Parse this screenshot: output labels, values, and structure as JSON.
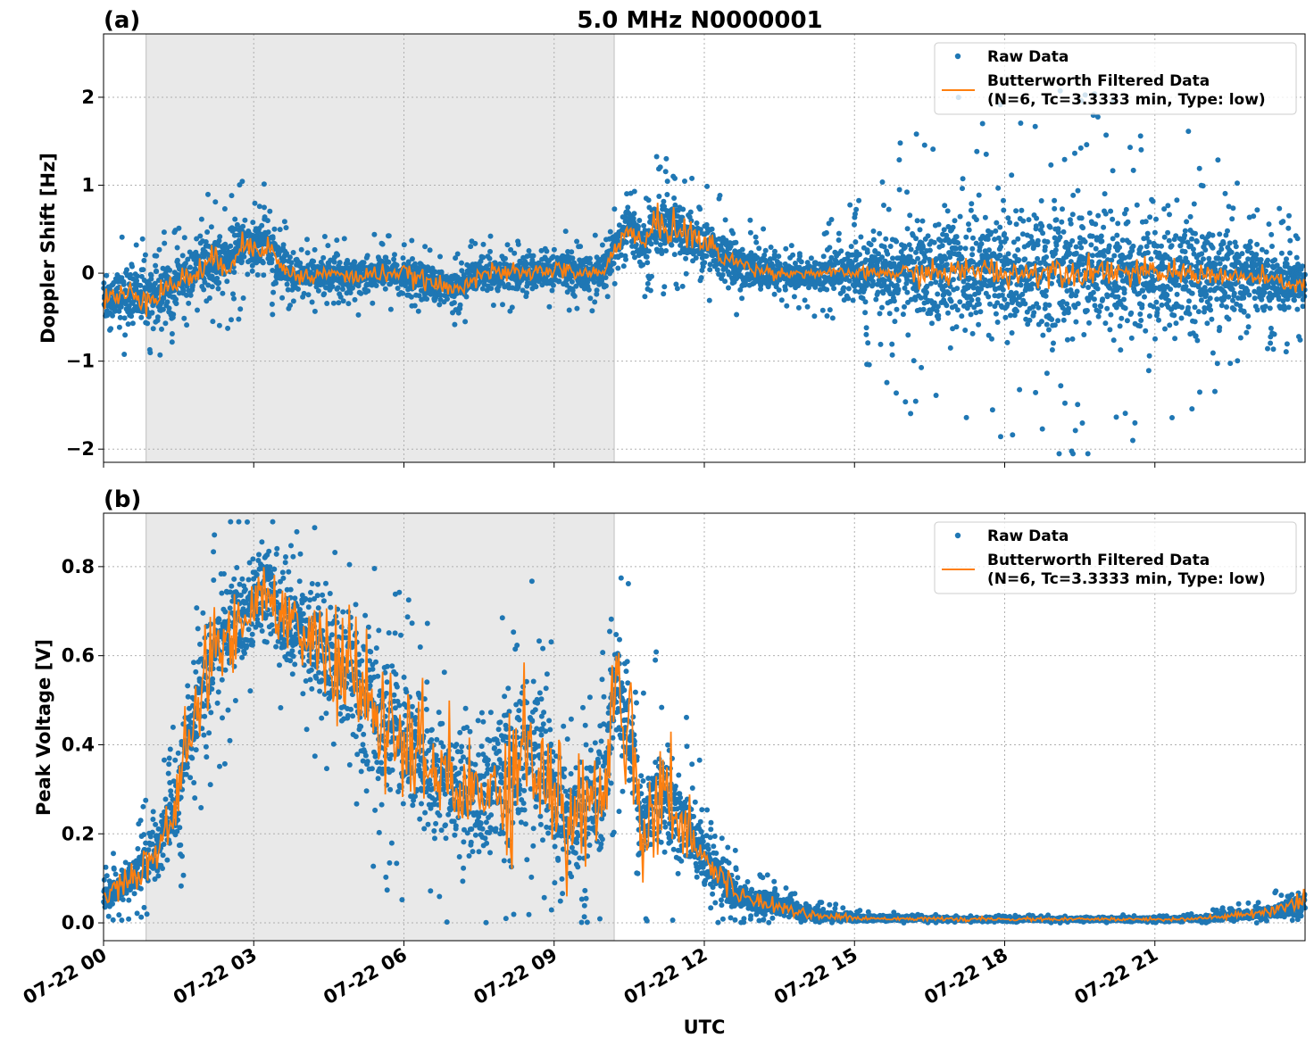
{
  "figure": {
    "suptitle": "5.0 MHz N0000001",
    "xlabel": "UTC"
  },
  "chart_data": [
    {
      "type": "scatter",
      "panel_label": "(a)",
      "ylabel": "Doppler Shift [Hz]",
      "x_range_hours": [
        0,
        24
      ],
      "ylim": [
        -2.15,
        2.72
      ],
      "yticks": [
        -2,
        -1,
        0,
        1,
        2
      ],
      "ytick_labels": [
        "−2",
        "−1",
        "0",
        "1",
        "2"
      ],
      "grid": true,
      "legend_position": "top-right",
      "shaded_interval_hours": [
        0.85,
        10.2
      ],
      "series": [
        {
          "name": "Raw Data",
          "kind": "markers",
          "color": "#1f77b4",
          "x_hours": [
            0,
            0.5,
            1,
            1.5,
            2,
            2.25,
            2.5,
            2.75,
            3,
            3.25,
            3.5,
            3.75,
            4,
            4.5,
            5,
            5.5,
            6,
            6.5,
            7,
            7.5,
            8,
            8.5,
            9,
            9.5,
            10,
            10.3,
            10.5,
            10.8,
            11,
            11.5,
            12,
            12.5,
            13,
            13.5,
            14,
            14.5,
            15,
            15.5,
            16,
            16.5,
            17,
            17.5,
            18,
            18.5,
            19,
            19.5,
            20,
            20.5,
            21,
            21.5,
            22,
            22.5,
            23,
            23.5,
            24
          ],
          "center": [
            -0.3,
            -0.25,
            -0.25,
            -0.1,
            0.05,
            0.15,
            0.1,
            0.3,
            0.3,
            0.35,
            0.1,
            0.0,
            -0.05,
            0.0,
            -0.05,
            0.0,
            0.0,
            -0.1,
            -0.2,
            0.0,
            0.0,
            0.0,
            0.05,
            0.0,
            0.0,
            0.4,
            0.5,
            0.3,
            0.55,
            0.5,
            0.35,
            0.15,
            0.05,
            0.0,
            0.0,
            0.0,
            0.0,
            0.0,
            0.0,
            0.0,
            0.0,
            0.05,
            0.0,
            0.0,
            0.05,
            0.0,
            0.05,
            0.0,
            0.0,
            0.0,
            0.0,
            -0.05,
            -0.05,
            -0.1,
            -0.15
          ],
          "spread": [
            0.3,
            0.3,
            0.35,
            0.3,
            0.35,
            0.4,
            0.35,
            0.35,
            0.35,
            0.35,
            0.3,
            0.25,
            0.2,
            0.2,
            0.2,
            0.2,
            0.2,
            0.2,
            0.2,
            0.2,
            0.2,
            0.2,
            0.2,
            0.2,
            0.2,
            0.25,
            0.3,
            0.3,
            0.35,
            0.35,
            0.3,
            0.3,
            0.25,
            0.15,
            0.15,
            0.2,
            0.3,
            0.4,
            0.55,
            0.6,
            0.65,
            0.7,
            0.7,
            0.7,
            0.7,
            0.7,
            0.7,
            0.7,
            0.65,
            0.6,
            0.55,
            0.5,
            0.45,
            0.35,
            0.3
          ],
          "outlier": [
            0.4,
            0.4,
            0.45,
            0.4,
            0.45,
            0.5,
            0.45,
            0.45,
            0.45,
            0.45,
            0.35,
            0.3,
            0.25,
            0.25,
            0.25,
            0.25,
            0.25,
            0.25,
            0.25,
            0.25,
            0.25,
            0.25,
            0.25,
            0.25,
            0.25,
            0.3,
            0.35,
            0.4,
            0.45,
            0.45,
            0.4,
            0.35,
            0.3,
            0.25,
            0.3,
            0.4,
            0.6,
            0.8,
            1.0,
            1.2,
            1.4,
            1.5,
            1.5,
            1.5,
            1.5,
            1.5,
            1.4,
            1.3,
            1.2,
            1.1,
            0.9,
            0.8,
            0.6,
            0.5,
            0.4
          ]
        },
        {
          "name": "Butterworth Filtered Data\n(N=6, Tc=3.3333 min, Type: low)",
          "kind": "line",
          "color": "#ff7f0e",
          "x_hours": [
            0,
            0.5,
            1,
            1.5,
            2,
            2.25,
            2.5,
            2.75,
            3,
            3.25,
            3.5,
            3.75,
            4,
            4.5,
            5,
            5.5,
            6,
            6.5,
            7,
            7.5,
            8,
            8.5,
            9,
            9.5,
            10,
            10.3,
            10.5,
            10.8,
            11,
            11.5,
            12,
            12.5,
            13,
            13.5,
            14,
            14.5,
            15,
            15.5,
            16,
            16.5,
            17,
            17.5,
            18,
            18.5,
            19,
            19.5,
            20,
            20.5,
            21,
            21.5,
            22,
            22.5,
            23,
            23.5,
            24
          ],
          "y": [
            -0.3,
            -0.25,
            -0.25,
            -0.1,
            0.05,
            0.15,
            0.1,
            0.3,
            0.3,
            0.35,
            0.1,
            0.0,
            -0.05,
            0.0,
            -0.05,
            0.0,
            0.0,
            -0.1,
            -0.2,
            0.0,
            0.0,
            0.0,
            0.05,
            0.0,
            0.0,
            0.4,
            0.5,
            0.3,
            0.55,
            0.5,
            0.35,
            0.15,
            0.05,
            0.0,
            0.0,
            0.0,
            0.0,
            0.0,
            0.0,
            0.0,
            0.0,
            0.05,
            0.0,
            0.0,
            0.05,
            0.0,
            0.05,
            0.0,
            0.0,
            0.0,
            0.0,
            -0.05,
            -0.05,
            -0.1,
            -0.15
          ],
          "jitter": [
            0.08,
            0.08,
            0.08,
            0.08,
            0.08,
            0.08,
            0.08,
            0.08,
            0.08,
            0.08,
            0.06,
            0.05,
            0.05,
            0.05,
            0.05,
            0.05,
            0.05,
            0.05,
            0.05,
            0.05,
            0.05,
            0.05,
            0.05,
            0.05,
            0.05,
            0.06,
            0.06,
            0.08,
            0.1,
            0.1,
            0.08,
            0.06,
            0.04,
            0.03,
            0.03,
            0.03,
            0.03,
            0.04,
            0.06,
            0.07,
            0.08,
            0.08,
            0.08,
            0.08,
            0.08,
            0.08,
            0.08,
            0.08,
            0.07,
            0.07,
            0.06,
            0.06,
            0.05,
            0.05,
            0.05
          ]
        }
      ]
    },
    {
      "type": "scatter",
      "panel_label": "(b)",
      "ylabel": "Peak Voltage [V]",
      "x_range_hours": [
        0,
        24
      ],
      "ylim": [
        -0.04,
        0.92
      ],
      "yticks": [
        0.0,
        0.2,
        0.4,
        0.6,
        0.8
      ],
      "ytick_labels": [
        "0.0",
        "0.2",
        "0.4",
        "0.6",
        "0.8"
      ],
      "xticks_hours": [
        0,
        3,
        6,
        9,
        12,
        15,
        18,
        21
      ],
      "xtick_labels": [
        "07-22 00",
        "07-22 03",
        "07-22 06",
        "07-22 09",
        "07-22 12",
        "07-22 15",
        "07-22 18",
        "07-22 21"
      ],
      "grid": true,
      "legend_position": "top-right",
      "shaded_interval_hours": [
        0.85,
        10.2
      ],
      "series": [
        {
          "name": "Raw Data",
          "kind": "markers",
          "color": "#1f77b4",
          "x_hours": [
            0,
            0.5,
            1,
            1.3,
            1.5,
            1.8,
            2,
            2.5,
            3,
            3.25,
            3.5,
            4,
            4.5,
            5,
            5.5,
            6,
            6.5,
            7,
            7.5,
            8,
            8.5,
            9,
            9.25,
            9.5,
            10,
            10.25,
            10.5,
            10.8,
            11,
            11.5,
            12,
            12.5,
            13,
            13.5,
            14,
            14.5,
            15,
            15.5,
            16,
            17,
            18,
            19,
            20,
            21,
            22,
            22.5,
            23,
            23.5,
            24
          ],
          "center": [
            0.06,
            0.1,
            0.15,
            0.22,
            0.3,
            0.45,
            0.55,
            0.65,
            0.72,
            0.74,
            0.7,
            0.65,
            0.6,
            0.55,
            0.45,
            0.4,
            0.35,
            0.3,
            0.28,
            0.33,
            0.4,
            0.3,
            0.2,
            0.25,
            0.3,
            0.55,
            0.45,
            0.2,
            0.3,
            0.25,
            0.15,
            0.08,
            0.05,
            0.04,
            0.02,
            0.015,
            0.01,
            0.01,
            0.01,
            0.008,
            0.008,
            0.008,
            0.008,
            0.008,
            0.01,
            0.015,
            0.02,
            0.03,
            0.05
          ],
          "spread": [
            0.03,
            0.04,
            0.06,
            0.07,
            0.1,
            0.12,
            0.13,
            0.13,
            0.11,
            0.11,
            0.12,
            0.13,
            0.14,
            0.15,
            0.16,
            0.16,
            0.15,
            0.15,
            0.15,
            0.16,
            0.18,
            0.16,
            0.14,
            0.14,
            0.14,
            0.15,
            0.15,
            0.12,
            0.12,
            0.1,
            0.07,
            0.04,
            0.03,
            0.02,
            0.015,
            0.01,
            0.008,
            0.006,
            0.005,
            0.004,
            0.004,
            0.004,
            0.004,
            0.004,
            0.006,
            0.008,
            0.012,
            0.016,
            0.03
          ],
          "outlier": [
            0.05,
            0.07,
            0.1,
            0.12,
            0.14,
            0.15,
            0.15,
            0.15,
            0.14,
            0.14,
            0.15,
            0.16,
            0.17,
            0.18,
            0.2,
            0.2,
            0.19,
            0.19,
            0.19,
            0.2,
            0.22,
            0.2,
            0.18,
            0.18,
            0.18,
            0.2,
            0.2,
            0.2,
            0.2,
            0.18,
            0.12,
            0.07,
            0.05,
            0.03,
            0.025,
            0.02,
            0.015,
            0.01,
            0.008,
            0.006,
            0.006,
            0.006,
            0.006,
            0.006,
            0.01,
            0.015,
            0.02,
            0.03,
            0.06
          ]
        },
        {
          "name": "Butterworth Filtered Data\n(N=6, Tc=3.3333 min, Type: low)",
          "kind": "line",
          "color": "#ff7f0e",
          "x_hours": [
            0,
            0.5,
            1,
            1.3,
            1.5,
            1.8,
            2,
            2.5,
            3,
            3.25,
            3.5,
            4,
            4.5,
            5,
            5.5,
            6,
            6.5,
            7,
            7.5,
            8,
            8.5,
            9,
            9.25,
            9.5,
            10,
            10.25,
            10.5,
            10.8,
            11,
            11.5,
            12,
            12.5,
            13,
            13.5,
            14,
            14.5,
            15,
            15.5,
            16,
            17,
            18,
            19,
            20,
            21,
            22,
            22.5,
            23,
            23.5,
            24
          ],
          "y": [
            0.06,
            0.1,
            0.15,
            0.22,
            0.3,
            0.45,
            0.55,
            0.65,
            0.72,
            0.74,
            0.7,
            0.65,
            0.6,
            0.55,
            0.45,
            0.4,
            0.35,
            0.3,
            0.28,
            0.33,
            0.4,
            0.3,
            0.2,
            0.25,
            0.3,
            0.55,
            0.45,
            0.2,
            0.3,
            0.25,
            0.15,
            0.08,
            0.05,
            0.04,
            0.02,
            0.015,
            0.01,
            0.01,
            0.01,
            0.008,
            0.008,
            0.008,
            0.008,
            0.008,
            0.01,
            0.015,
            0.02,
            0.03,
            0.05
          ],
          "jitter": [
            0.01,
            0.02,
            0.03,
            0.03,
            0.04,
            0.05,
            0.05,
            0.05,
            0.03,
            0.03,
            0.04,
            0.05,
            0.06,
            0.07,
            0.07,
            0.07,
            0.07,
            0.07,
            0.07,
            0.08,
            0.09,
            0.08,
            0.07,
            0.07,
            0.07,
            0.08,
            0.08,
            0.07,
            0.07,
            0.05,
            0.03,
            0.015,
            0.01,
            0.008,
            0.005,
            0.004,
            0.003,
            0.002,
            0.002,
            0.002,
            0.002,
            0.002,
            0.002,
            0.002,
            0.003,
            0.004,
            0.005,
            0.006,
            0.01
          ]
        }
      ]
    }
  ]
}
